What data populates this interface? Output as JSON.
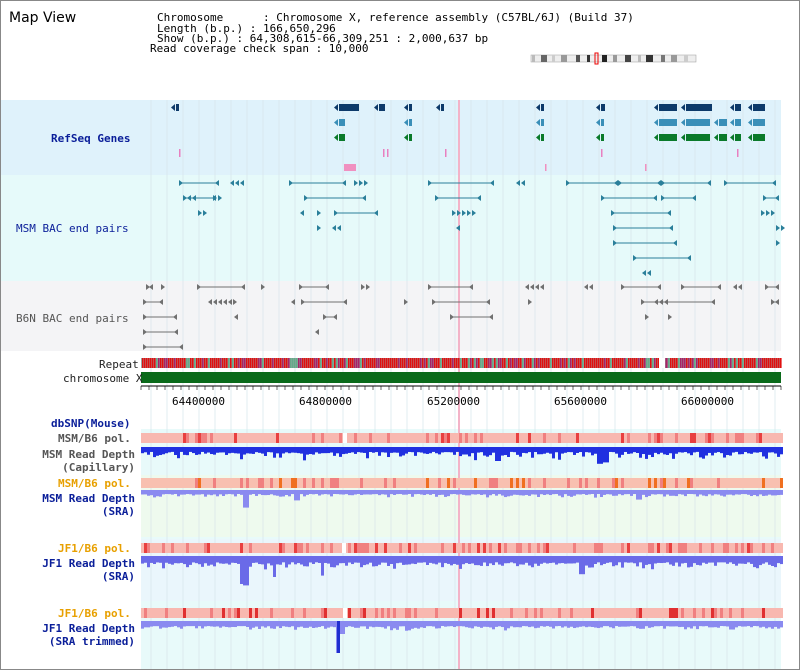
{
  "view_title": "Map View",
  "info": {
    "chromosome": "Chromosome      : Chromosome X, reference assembly (C57BL/6J) (Build 37)",
    "length": "Length (b.p.) : 166,650,296",
    "show": "Show (b.p.) : 64,308,615-66,309,251 : 2,000,637 bp",
    "coverage": "Read coverage check span : 10,000"
  },
  "tracks": {
    "refseq": "RefSeq Genes",
    "msm_bac": "MSM BAC end pairs",
    "b6n_bac": "B6N BAC end pairs",
    "repeat": "Repeat",
    "chrom": "chromosome X",
    "dbsnp": "dbSNP(Mouse)",
    "msm_pol_1": "MSM/B6 pol.",
    "msm_depth_cap_1": "MSM Read Depth",
    "msm_depth_cap_2": "(Capillary)",
    "msm_pol_2": "MSM/B6 pol.",
    "msm_depth_sra_1": "MSM Read Depth",
    "msm_depth_sra_2": "(SRA)",
    "jf1_pol_1": "JF1/B6 pol.",
    "jf1_depth_1": "JF1 Read Depth",
    "jf1_depth_2": "(SRA)",
    "jf1_pol_2": "JF1/B6 pol.",
    "jf1_trim_1": "JF1 Read Depth",
    "jf1_trim_2": "(SRA trimmed)"
  },
  "axis": {
    "ticks": [
      "64400000",
      "64800000",
      "65200000",
      "65600000",
      "66000000"
    ]
  },
  "colors": {
    "refseq_bg": "#dff2fb",
    "msm_bg": "#e6fafa",
    "b6n_bg": "#f4f4f6",
    "gene_dark": "#0d3a6a",
    "gene_mid": "#3a8fb8",
    "gene_green": "#0a7a2a",
    "bac_msm": "#2a7f9a",
    "bac_b6n": "#707070",
    "chrom_green": "#0a6a1a",
    "repeat_red": "#e01010",
    "depth_blue": "#2030e0",
    "depth_light": "#8a8af0"
  }
}
